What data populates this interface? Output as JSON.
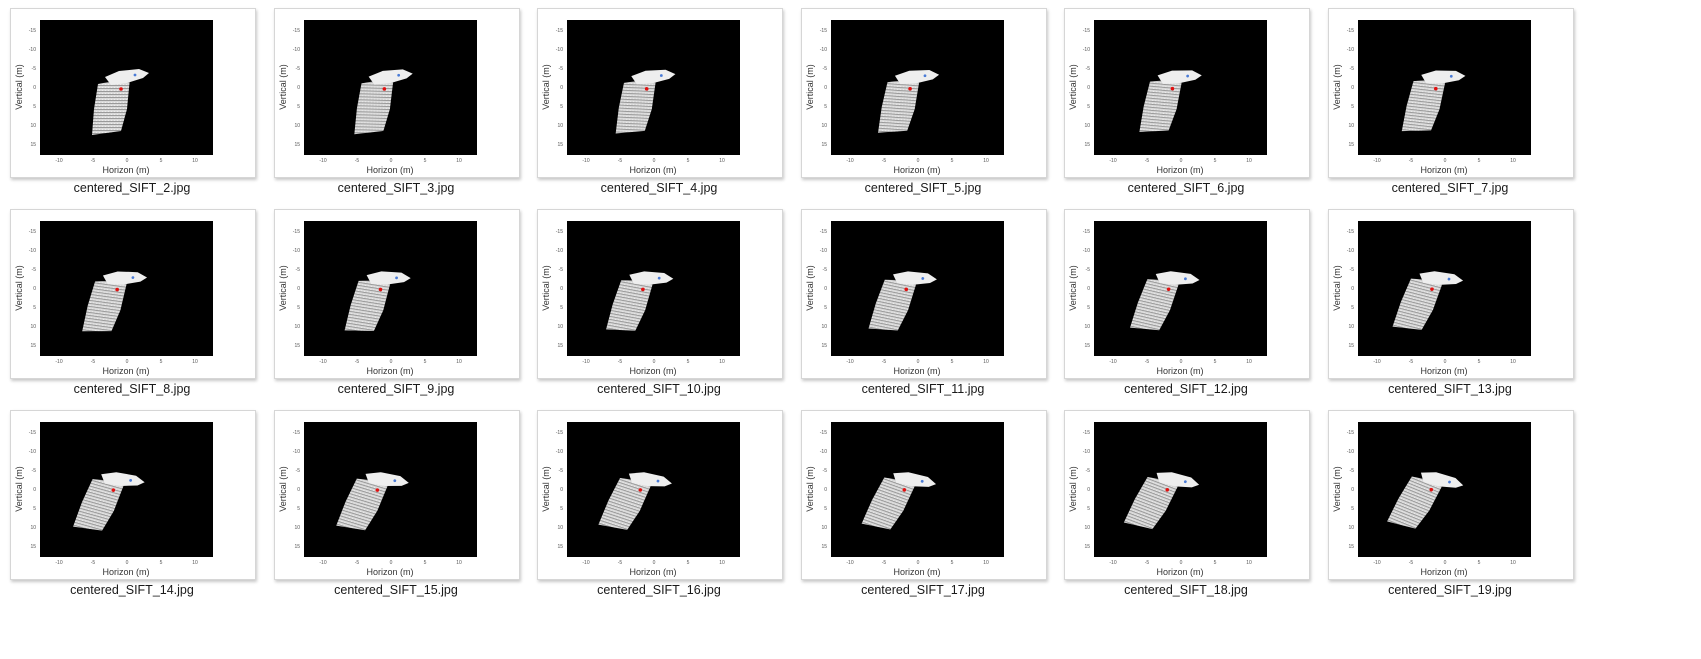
{
  "files": [
    "centered_SIFT_2.jpg",
    "centered_SIFT_3.jpg",
    "centered_SIFT_4.jpg",
    "centered_SIFT_5.jpg",
    "centered_SIFT_6.jpg",
    "centered_SIFT_7.jpg",
    "centered_SIFT_8.jpg",
    "centered_SIFT_9.jpg",
    "centered_SIFT_10.jpg",
    "centered_SIFT_11.jpg",
    "centered_SIFT_12.jpg",
    "centered_SIFT_13.jpg",
    "centered_SIFT_14.jpg",
    "centered_SIFT_15.jpg",
    "centered_SIFT_16.jpg",
    "centered_SIFT_17.jpg",
    "centered_SIFT_18.jpg",
    "centered_SIFT_19.jpg"
  ],
  "plot": {
    "xlabel": "Horizon (m)",
    "ylabel": "Vertical (m)",
    "xticks": [
      "-10",
      "-5",
      "0",
      "5",
      "10"
    ],
    "yticks": [
      "-15",
      "-10",
      "-5",
      "0",
      "5",
      "10",
      "15"
    ],
    "background_color": "#000000",
    "point_cloud_color": "#d9d9d9",
    "marker_color": "#e01010"
  }
}
